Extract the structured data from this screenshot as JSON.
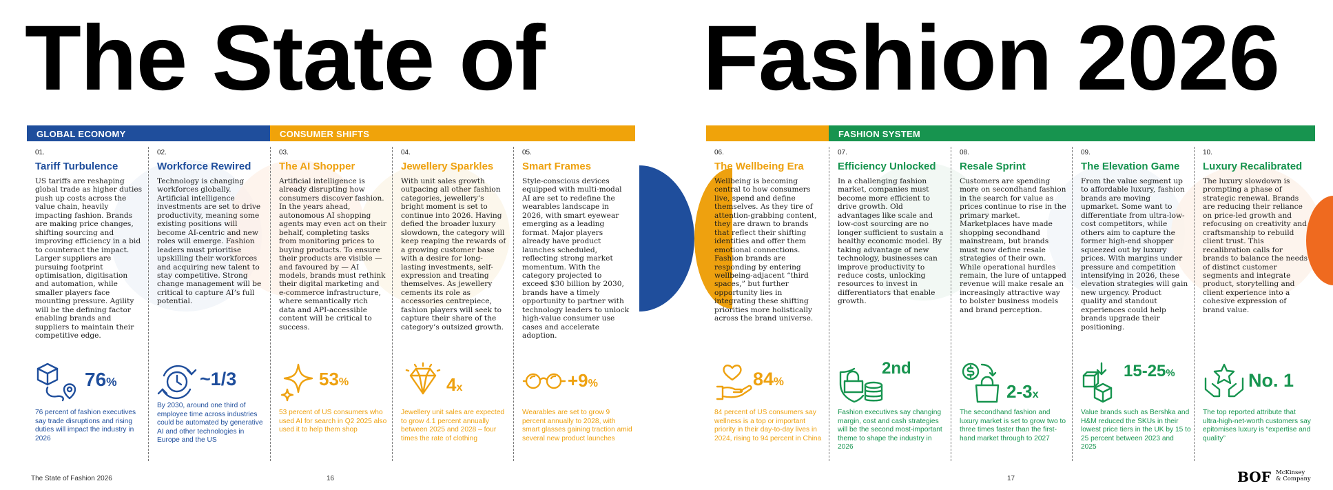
{
  "title": {
    "left": "The State of",
    "right": "Fashion 2026"
  },
  "sections": {
    "global_economy": {
      "label": "GLOBAL ECONOMY",
      "color": "#1f4e9c"
    },
    "consumer_shifts": {
      "label": "CONSUMER SHIFTS",
      "color": "#f0a30a"
    },
    "fashion_system": {
      "label": "FASHION SYSTEM",
      "color": "#17944f"
    }
  },
  "themes": [
    {
      "num": "01.",
      "title": "Tariff Turbulence",
      "body": "US tariffs are reshaping global trade as higher duties push up costs across the value chain, heavily impacting fashion. Brands are making price changes, shifting sourcing and improving efficiency in a bid to counteract the impact. Larger suppliers are pursuing footprint optimisation, digitisation and automation, while smaller players face mounting pressure. Agility will be the defining factor enabling brands and suppliers to maintain their competitive edge.",
      "stat": "76",
      "stat_suffix": "%",
      "caption": "76 percent of fashion executives say trade disruptions and rising duties will impact the industry in 2026",
      "icon": "package-location-icon"
    },
    {
      "num": "02.",
      "title": "Workforce Rewired",
      "body": "Technology is changing workforces globally. Artificial intelligence investments are set to drive productivity, meaning some existing positions will become AI-centric and new roles will emerge. Fashion leaders must prioritise upskilling their workforces and acquiring new talent to stay competitive. Strong change management will be critical to capture AI’s full potential.",
      "stat": "~1/3",
      "stat_suffix": "",
      "caption": "By 2030, around one third of employee time across industries could be automated by generative AI and other technologies in Europe and the US",
      "icon": "clock-cycle-icon"
    },
    {
      "num": "03.",
      "title": "The AI Shopper",
      "body": "Artificial intelligence is already disrupting how consumers discover fashion. In the years ahead, autonomous AI shopping agents may even act on their behalf, completing tasks from monitoring prices to buying products. To ensure their products are visible — and favoured by — AI models, brands must rethink their digital marketing and e-commerce infrastructure, where semantically rich data and API-accessible content will be critical to success.",
      "stat": "53",
      "stat_suffix": "%",
      "caption": "53 percent of US consumers who used AI for search in Q2 2025 also used it to help them shop",
      "icon": "sparkle-icon"
    },
    {
      "num": "04.",
      "title": "Jewellery Sparkles",
      "body": "With unit sales growth outpacing all other fashion categories, jewellery’s bright moment is set to continue into 2026. Having defied the broader luxury slowdown, the category will keep reaping the rewards of a growing customer base with a desire for long-lasting investments, self-expression and treating themselves. As jewellery cements its role as accessories centrepiece, fashion players will seek to capture their share of the category’s outsized growth.",
      "stat": "4",
      "stat_suffix": "x",
      "caption": "Jewellery unit sales are expected to grow 4.1 percent annually between 2025 and 2028 – four times the rate of clothing",
      "icon": "diamond-icon"
    },
    {
      "num": "05.",
      "title": "Smart Frames",
      "body": "Style-conscious devices equipped with multi-modal AI are set to redefine the wearables landscape in 2026, with smart eyewear emerging as a leading format. Major players already have product launches scheduled, reflecting strong market momentum. With the category projected to exceed $30 billion by 2030, brands have a timely opportunity to partner with technology leaders to unlock high-value consumer use cases and accelerate adoption.",
      "stat": "+9",
      "stat_suffix": "%",
      "caption": "Wearables are set to grow 9 percent annually to 2028, with smart glasses gaining traction amid several new product launches",
      "icon": "glasses-icon"
    },
    {
      "num": "06.",
      "title": "The Wellbeing Era",
      "body": "Wellbeing is becoming central to how consumers live, spend and define themselves. As they tire of attention-grabbing content, they are drawn to brands that reflect their shifting identities and offer them emotional connections. Fashion brands are responding by entering wellbeing-adjacent “third spaces,” but further opportunity lies in integrating these shifting priorities more holistically across the brand universe.",
      "stat": "84",
      "stat_suffix": "%",
      "caption": "84 percent of US consumers say wellness is a top or important priority in their day-to-day lives in 2024, rising to 94 percent in China",
      "icon": "heart-hand-icon"
    },
    {
      "num": "07.",
      "title": "Efficiency Unlocked",
      "body": "In a challenging fashion market, companies must become more efficient to drive growth. Old advantages like scale and low-cost sourcing are no longer sufficient to sustain a healthy economic model. By taking advantage of new technology, businesses can improve productivity to reduce costs, unlocking resources to invest in differentiators that enable growth.",
      "stat": "2nd",
      "stat_suffix": "",
      "caption": "Fashion executives say changing margin, cost and cash strategies will be the second most-important theme to shape the industry in 2026",
      "icon": "shield-coins-icon"
    },
    {
      "num": "08.",
      "title": "Resale Sprint",
      "body": "Customers are spending more on secondhand fashion in the search for value as prices continue to rise in the primary market. Marketplaces have made shopping secondhand mainstream, but brands must now define resale strategies of their own. While operational hurdles remain, the lure of untapped revenue will make resale an increasingly attractive way to bolster business models and brand perception.",
      "stat": "2-3",
      "stat_suffix": "x",
      "caption": "The secondhand fashion and luxury market is set to grow two to three times faster than the first-hand market through to 2027",
      "icon": "dollar-bag-icon"
    },
    {
      "num": "09.",
      "title": "The Elevation Game",
      "body": "From the value segment up to affordable luxury, fashion brands are moving upmarket. Some want to differentiate from ultra-low-cost competitors, while others aim to capture the former high-end shopper squeezed out by luxury prices. With margins under pressure and competition intensifying in 2026, these elevation strategies will gain new urgency. Product quality and standout experiences could help brands upgrade their positioning.",
      "stat": "15-25",
      "stat_suffix": "%",
      "caption": "Value brands such as Bershka and H&M reduced the SKUs in their lowest price tiers in the UK by 15 to 25 percent between 2023 and 2025",
      "icon": "boxes-arrow-icon"
    },
    {
      "num": "10.",
      "title": "Luxury Recalibrated",
      "body": "The luxury slowdown is prompting a phase of strategic renewal. Brands are reducing their reliance on price-led growth and refocusing on creativity and craftsmanship to rebuild client trust. This recalibration calls for brands to balance the needs of distinct customer segments and integrate product, storytelling and client experience into a cohesive expression of brand value.",
      "stat": "No. 1",
      "stat_suffix": "",
      "caption": "The top reported attribute that ultra-high-net-worth customers say epitomises luxury is “expertise and quality”",
      "icon": "star-hands-icon"
    }
  ],
  "footer": {
    "publication": "The State of Fashion 2026",
    "page_left": "16",
    "page_right": "17",
    "logo_bof": "BOF",
    "logo_mck_line1": "McKinsey",
    "logo_mck_line2": "& Company"
  }
}
